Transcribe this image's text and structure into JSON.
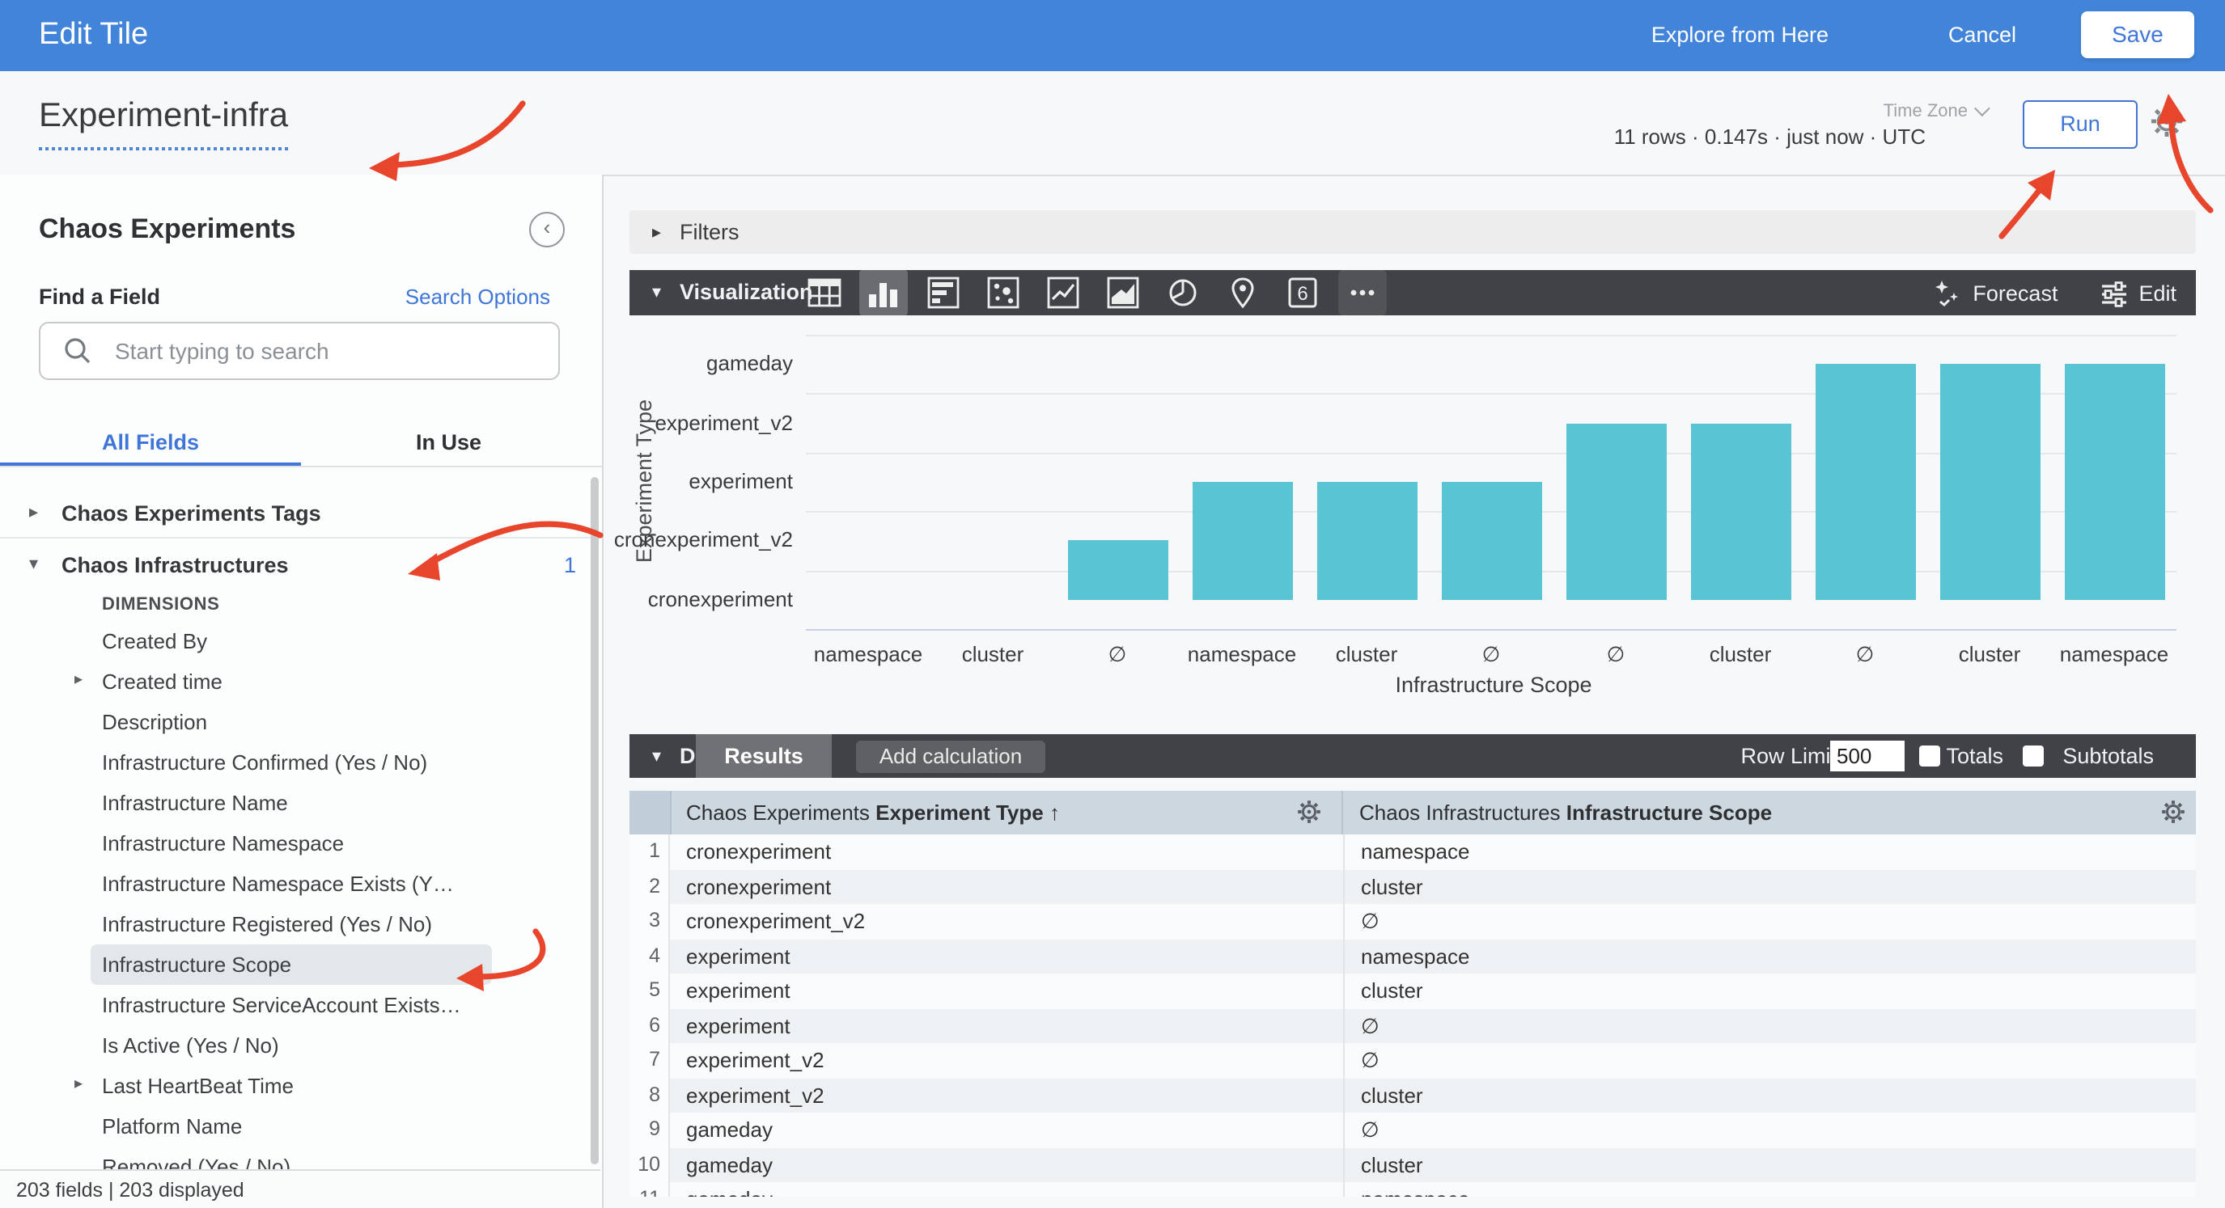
{
  "topbar": {
    "title": "Edit Tile",
    "explore_label": "Explore from Here",
    "cancel_label": "Cancel",
    "save_label": "Save"
  },
  "header": {
    "tile_name": "Experiment-infra",
    "stats_text": "11 rows · 0.147s · just now · UTC",
    "timezone_label": "Time Zone",
    "run_label": "Run",
    "icons": [
      "gear-icon"
    ]
  },
  "sidebar": {
    "view_title": "Chaos Experiments",
    "collapse_icon": "chevron-left-circle-icon",
    "find_label": "Find a Field",
    "search_options_label": "Search Options",
    "search": {
      "placeholder": "Start typing to search",
      "value": "",
      "icon": "search-icon"
    },
    "tabs": {
      "all_fields": "All Fields",
      "in_use": "In Use",
      "active": "All Fields"
    },
    "groups": [
      {
        "label": "Chaos Experiments Tags",
        "expanded": false
      },
      {
        "label": "Chaos Infrastructures",
        "expanded": true,
        "count": "1"
      }
    ],
    "section_label": "DIMENSIONS",
    "fields": [
      {
        "label": "Created By"
      },
      {
        "label": "Created time",
        "caret": true
      },
      {
        "label": "Description"
      },
      {
        "label": "Infrastructure Confirmed (Yes / No)"
      },
      {
        "label": "Infrastructure Name"
      },
      {
        "label": "Infrastructure Namespace"
      },
      {
        "label": "Infrastructure Namespace Exists (Y…"
      },
      {
        "label": "Infrastructure Registered (Yes / No)"
      },
      {
        "label": "Infrastructure Scope",
        "selected": true
      },
      {
        "label": "Infrastructure ServiceAccount Exists…"
      },
      {
        "label": "Is Active (Yes / No)"
      },
      {
        "label": "Last HeartBeat Time",
        "caret": true
      },
      {
        "label": "Platform Name"
      },
      {
        "label": "Removed (Yes / No)"
      }
    ],
    "footer_text": "203 fields | 203 displayed"
  },
  "filters": {
    "label": "Filters"
  },
  "visualization": {
    "label": "Visualization",
    "icons": [
      "table-chart-icon",
      "column-chart-icon",
      "bar-chart-icon",
      "scatter-chart-icon",
      "line-chart-icon",
      "area-chart-icon",
      "pie-chart-icon",
      "map-chart-icon",
      "single-value-icon",
      "more-viz-icon"
    ],
    "selected_icon": "column-chart-icon",
    "forecast_label": "Forecast",
    "edit_label": "Edit"
  },
  "chart_data": {
    "type": "bar",
    "title": "",
    "xlabel": "Infrastructure Scope",
    "ylabel": "Experiment Type",
    "y_categories": [
      "cronexperiment",
      "cronexperiment_v2",
      "experiment",
      "experiment_v2",
      "gameday"
    ],
    "x": [
      "namespace",
      "cluster",
      "∅",
      "namespace",
      "cluster",
      "∅",
      "∅",
      "cluster",
      "∅",
      "cluster",
      "namespace"
    ],
    "values": [
      0,
      0,
      1,
      2,
      2,
      2,
      3,
      3,
      4,
      4,
      4
    ],
    "value_meaning": "ordinal index of experiment type per result row; baseline at cronexperiment",
    "bar_color": "#58c4d4",
    "grid": true,
    "legend": "none"
  },
  "data_section": {
    "label": "Data",
    "results_tab": "Results",
    "add_calculation": "Add calculation",
    "row_limit_label": "Row Limit",
    "row_limit_value": "500",
    "totals_label": "Totals",
    "totals_checked": false,
    "subtotals_label": "Subtotals",
    "subtotals_checked": false
  },
  "table": {
    "col1_prefix": "Chaos Experiments ",
    "col1_field": "Experiment Type",
    "col1_sort": "↑",
    "col2_prefix": "Chaos Infrastructures ",
    "col2_field": "Infrastructure Scope",
    "header_icons": [
      "gear-icon",
      "gear-icon"
    ],
    "rows": [
      [
        "cronexperiment",
        "namespace"
      ],
      [
        "cronexperiment",
        "cluster"
      ],
      [
        "cronexperiment_v2",
        "∅"
      ],
      [
        "experiment",
        "namespace"
      ],
      [
        "experiment",
        "cluster"
      ],
      [
        "experiment",
        "∅"
      ],
      [
        "experiment_v2",
        "∅"
      ],
      [
        "experiment_v2",
        "cluster"
      ],
      [
        "gameday",
        "∅"
      ],
      [
        "gameday",
        "cluster"
      ],
      [
        "gameday",
        "namespace"
      ]
    ]
  },
  "colors": {
    "topbar_blue": "#4284d9",
    "accent_blue": "#3f76d8",
    "dark_toolbar": "#404247",
    "bar_teal": "#58c4d4",
    "table_header": "#ccd7e0",
    "row_even": "#eef1f4",
    "row_odd": "#f8fafb",
    "annotation_red": "#e8462c",
    "page_bg": "#f7f8fa"
  }
}
